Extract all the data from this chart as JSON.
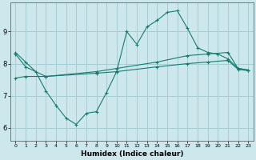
{
  "xlabel": "Humidex (Indice chaleur)",
  "bg_color": "#cce8ed",
  "grid_color": "#a8cdd4",
  "line_color": "#1a7a6e",
  "xlim": [
    -0.5,
    23.5
  ],
  "ylim": [
    5.6,
    9.9
  ],
  "yticks": [
    6,
    7,
    8,
    9
  ],
  "xticks": [
    0,
    1,
    2,
    3,
    4,
    5,
    6,
    7,
    8,
    9,
    10,
    11,
    12,
    13,
    14,
    15,
    16,
    17,
    18,
    19,
    20,
    21,
    22,
    23
  ],
  "line1_x": [
    0,
    1,
    2,
    3,
    4,
    5,
    6,
    7,
    8,
    9,
    10,
    11,
    12,
    13,
    14,
    15,
    16,
    17,
    18,
    19,
    20,
    21,
    22,
    23
  ],
  "line1_y": [
    8.35,
    8.05,
    7.75,
    7.15,
    6.7,
    6.3,
    6.1,
    6.45,
    6.5,
    7.1,
    7.75,
    9.0,
    8.6,
    9.15,
    9.35,
    9.6,
    9.65,
    9.1,
    8.5,
    8.35,
    8.3,
    8.15,
    7.85,
    7.8
  ],
  "line2_x": [
    0,
    1,
    3,
    8,
    10,
    14,
    17,
    19,
    21,
    22,
    23
  ],
  "line2_y": [
    8.3,
    7.9,
    7.6,
    7.75,
    7.85,
    8.05,
    8.25,
    8.3,
    8.35,
    7.85,
    7.8
  ],
  "line3_x": [
    0,
    1,
    3,
    8,
    10,
    14,
    17,
    19,
    21,
    22,
    23
  ],
  "line3_y": [
    7.55,
    7.6,
    7.6,
    7.7,
    7.75,
    7.9,
    8.0,
    8.05,
    8.1,
    7.82,
    7.78
  ]
}
